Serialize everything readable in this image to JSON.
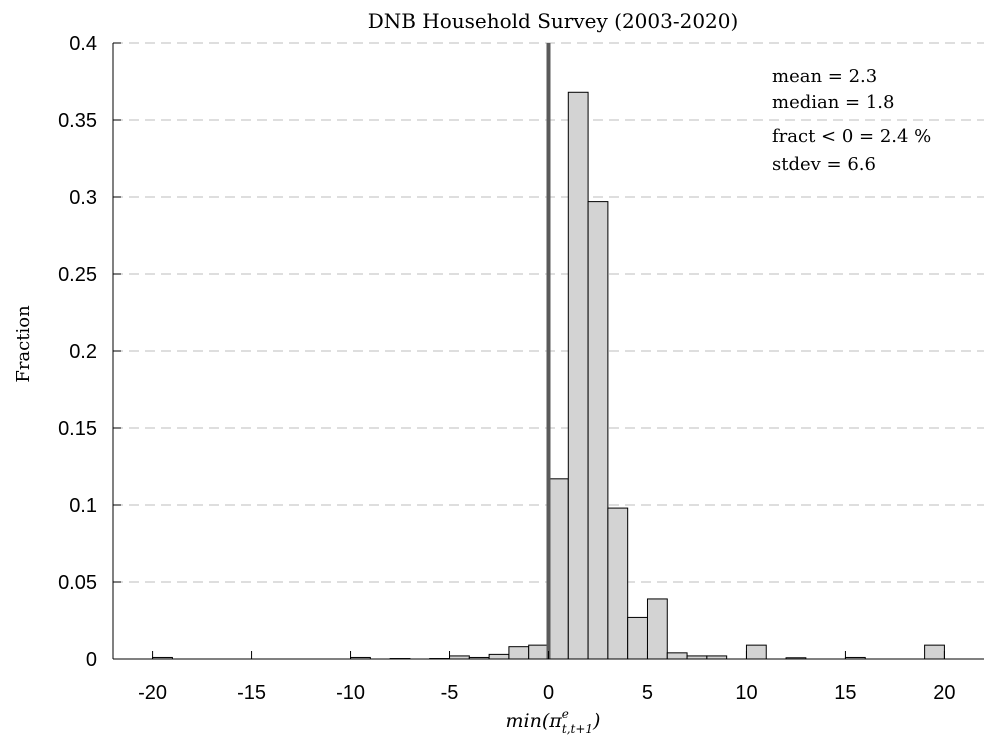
{
  "chart_data": {
    "type": "bar",
    "title": "DNB Household Survey (2003-2020)",
    "ylabel": "Fraction",
    "xlabel_base": "min(π",
    "xlabel_sup": "e",
    "xlabel_sub": "t,t+1",
    "xlabel_close": ")",
    "xlim": [
      -22,
      22
    ],
    "ylim": [
      0,
      0.4
    ],
    "xticks": [
      -20,
      -15,
      -10,
      -5,
      0,
      5,
      10,
      15,
      20
    ],
    "xtick_labels": [
      "-20",
      "-15",
      "-10",
      "-5",
      "0",
      "5",
      "10",
      "15",
      "20"
    ],
    "yticks": [
      0,
      0.05,
      0.1,
      0.15,
      0.2,
      0.25,
      0.3,
      0.35,
      0.4
    ],
    "ytick_labels": [
      "0",
      "0.05",
      "0.1",
      "0.15",
      "0.2",
      "0.25",
      "0.3",
      "0.35",
      "0.4"
    ],
    "grid": "horizontal-dashed",
    "bin_width": 1,
    "bins": [
      {
        "start": -20,
        "value": 0.001
      },
      {
        "start": -19,
        "value": 0.0
      },
      {
        "start": -18,
        "value": 0.0
      },
      {
        "start": -17,
        "value": 0.0
      },
      {
        "start": -16,
        "value": 0.0
      },
      {
        "start": -15,
        "value": 0.0
      },
      {
        "start": -14,
        "value": 0.0
      },
      {
        "start": -13,
        "value": 0.0
      },
      {
        "start": -12,
        "value": 0.0
      },
      {
        "start": -11,
        "value": 0.0
      },
      {
        "start": -10,
        "value": 0.001
      },
      {
        "start": -9,
        "value": 0.0
      },
      {
        "start": -8,
        "value": 0.0003
      },
      {
        "start": -7,
        "value": 0.0
      },
      {
        "start": -6,
        "value": 0.0003
      },
      {
        "start": -5,
        "value": 0.002
      },
      {
        "start": -4,
        "value": 0.001
      },
      {
        "start": -3,
        "value": 0.003
      },
      {
        "start": -2,
        "value": 0.008
      },
      {
        "start": -1,
        "value": 0.009
      },
      {
        "start": 0,
        "value": 0.117
      },
      {
        "start": 1,
        "value": 0.368
      },
      {
        "start": 2,
        "value": 0.297
      },
      {
        "start": 3,
        "value": 0.098
      },
      {
        "start": 4,
        "value": 0.027
      },
      {
        "start": 5,
        "value": 0.039
      },
      {
        "start": 6,
        "value": 0.004
      },
      {
        "start": 7,
        "value": 0.002
      },
      {
        "start": 8,
        "value": 0.002
      },
      {
        "start": 9,
        "value": 0.0
      },
      {
        "start": 10,
        "value": 0.009
      },
      {
        "start": 11,
        "value": 0.0
      },
      {
        "start": 12,
        "value": 0.0008
      },
      {
        "start": 13,
        "value": 0.0
      },
      {
        "start": 14,
        "value": 0.0
      },
      {
        "start": 15,
        "value": 0.001
      },
      {
        "start": 16,
        "value": 0.0
      },
      {
        "start": 17,
        "value": 0.0
      },
      {
        "start": 18,
        "value": 0.0
      },
      {
        "start": 19,
        "value": 0.009
      }
    ],
    "vertical_line_x": 0,
    "annotations": [
      "mean = 2.3",
      "median = 1.8",
      "fract < 0 = 2.4 %",
      "stdev = 6.6"
    ],
    "colors": {
      "bar_fill": "#d3d3d3",
      "bar_edge": "#000000",
      "vline": "#5a5a5a",
      "grid": "#bdbdbd"
    }
  }
}
